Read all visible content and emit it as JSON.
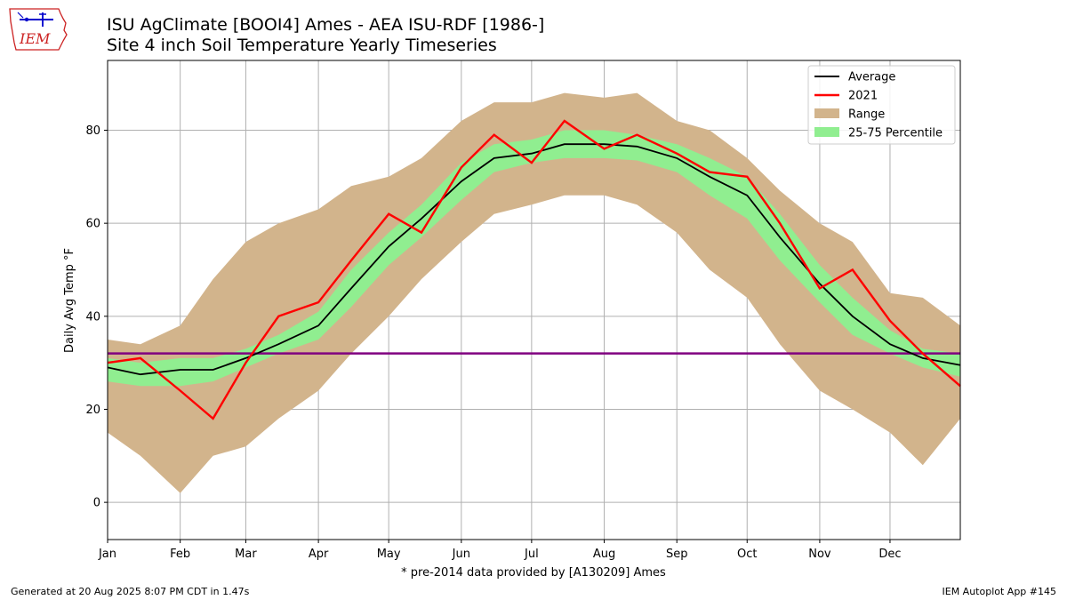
{
  "header": {
    "title": "ISU AgClimate [BOOI4] Ames - AEA ISU-RDF [1986-]",
    "subtitle": "Site 4 inch Soil Temperature Yearly Timeseries",
    "logo_text": "IEM"
  },
  "footer": {
    "generated": "Generated at 20 Aug 2025 8:07 PM CDT in 1.47s",
    "app": "IEM Autoplot App #145"
  },
  "colors": {
    "average": "#000000",
    "year": "#ff0000",
    "range": "#d2b48c",
    "percentile": "#90ee90",
    "freezing_line": "#800080",
    "grid": "#b0b0b0",
    "logo": "#cc2222"
  },
  "chart_data": {
    "type": "area",
    "xlabel": "* pre-2014 data provided by [A130209] Ames",
    "ylabel": "Daily Avg Temp °F",
    "xlim": [
      1,
      365
    ],
    "ylim": [
      -8,
      95
    ],
    "yticks": [
      0,
      20,
      40,
      60,
      80
    ],
    "xticks": [
      {
        "label": "Jan",
        "doy": 1
      },
      {
        "label": "Feb",
        "doy": 32
      },
      {
        "label": "Mar",
        "doy": 60
      },
      {
        "label": "Apr",
        "doy": 91
      },
      {
        "label": "May",
        "doy": 121
      },
      {
        "label": "Jun",
        "doy": 152
      },
      {
        "label": "Jul",
        "doy": 182
      },
      {
        "label": "Aug",
        "doy": 213
      },
      {
        "label": "Sep",
        "doy": 244
      },
      {
        "label": "Oct",
        "doy": 274
      },
      {
        "label": "Nov",
        "doy": 305
      },
      {
        "label": "Dec",
        "doy": 335
      }
    ],
    "grid": true,
    "legend_position": "top-right",
    "legend": [
      "Average",
      "2021",
      "Range",
      "25-75 Percentile"
    ],
    "reference_line": {
      "y": 32
    },
    "x": [
      1,
      15,
      32,
      46,
      60,
      74,
      91,
      105,
      121,
      135,
      152,
      166,
      182,
      196,
      213,
      227,
      244,
      258,
      274,
      288,
      305,
      319,
      335,
      349,
      365
    ],
    "series": [
      {
        "name": "Average",
        "values": [
          29,
          27.5,
          28.5,
          28.5,
          31,
          34,
          38,
          46,
          55,
          61,
          69,
          74,
          75,
          77,
          77,
          76.5,
          74,
          70,
          66,
          57,
          47,
          40,
          34,
          31,
          29.5
        ]
      },
      {
        "name": "2021",
        "values": [
          30,
          31,
          24,
          18,
          30,
          40,
          43,
          52,
          62,
          58,
          72,
          79,
          73,
          82,
          76,
          79,
          75,
          71,
          70,
          60,
          46,
          50,
          39,
          32,
          25
        ]
      },
      {
        "name": "Range max",
        "values": [
          35,
          34,
          38,
          48,
          56,
          60,
          63,
          68,
          70,
          74,
          82,
          86,
          86,
          88,
          87,
          88,
          82,
          80,
          74,
          67,
          60,
          56,
          45,
          44,
          38
        ]
      },
      {
        "name": "Range min",
        "values": [
          15,
          10,
          2,
          10,
          12,
          18,
          24,
          32,
          40,
          48,
          56,
          62,
          64,
          66,
          66,
          64,
          58,
          50,
          44,
          34,
          24,
          20,
          15,
          8,
          18
        ]
      },
      {
        "name": "25-75 low",
        "values": [
          26,
          25,
          25,
          26,
          29,
          32,
          35,
          42,
          51,
          57,
          65,
          71,
          73,
          74,
          74,
          73.5,
          71,
          66,
          61,
          52,
          43,
          36,
          32,
          29,
          27
        ]
      },
      {
        "name": "25-75 high",
        "values": [
          31,
          30,
          31,
          31,
          33,
          36,
          41,
          50,
          58,
          64,
          73,
          77,
          78,
          80,
          80,
          79,
          77,
          74,
          70,
          62,
          51,
          44,
          37,
          33,
          32
        ]
      }
    ]
  }
}
